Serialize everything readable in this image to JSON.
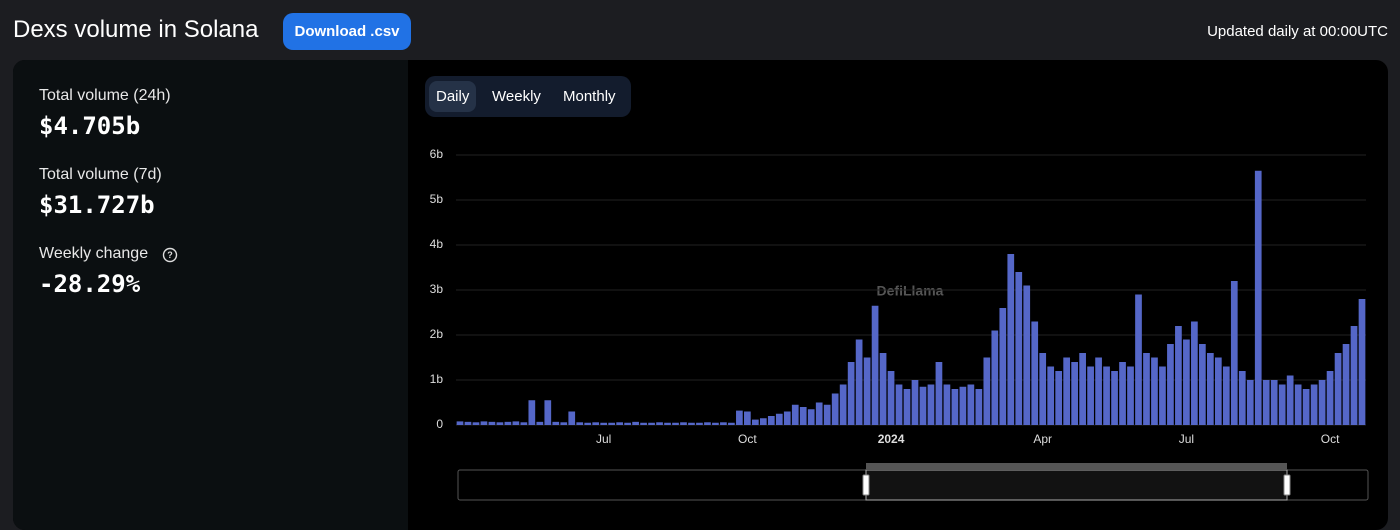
{
  "header": {
    "title": "Dexs volume in Solana",
    "download": "Download .csv",
    "updated": "Updated daily at 00:00UTC"
  },
  "stats": [
    {
      "label": "Total volume (24h)",
      "value": "$4.705b"
    },
    {
      "label": "Total volume (7d)",
      "value": "$31.727b"
    },
    {
      "label": "Weekly change",
      "value": "-28.29%"
    }
  ],
  "tabs": [
    "Daily",
    "Weekly",
    "Monthly"
  ],
  "chart_data": {
    "type": "bar",
    "watermark": "DefiLlama",
    "categories": [
      null,
      null,
      null,
      null,
      null,
      null,
      null,
      null,
      null,
      null,
      null,
      null,
      null,
      null,
      null,
      null,
      null,
      null,
      "Jul",
      null,
      null,
      null,
      null,
      null,
      null,
      null,
      null,
      null,
      null,
      null,
      null,
      null,
      null,
      null,
      null,
      null,
      "Oct",
      null,
      null,
      null,
      null,
      null,
      null,
      null,
      null,
      null,
      null,
      null,
      null,
      null,
      null,
      null,
      null,
      null,
      "2024",
      null,
      null,
      null,
      null,
      null,
      null,
      null,
      null,
      null,
      null,
      null,
      null,
      null,
      null,
      null,
      null,
      null,
      null,
      "Apr",
      null,
      null,
      null,
      null,
      null,
      null,
      null,
      null,
      null,
      null,
      null,
      null,
      null,
      null,
      null,
      null,
      null,
      "Jul",
      null,
      null,
      null,
      null,
      null,
      null,
      null,
      null,
      null,
      null,
      null,
      null,
      null,
      null,
      null,
      null,
      null,
      "Oct",
      null,
      null,
      null,
      null
    ],
    "values": [
      0.08,
      0.07,
      0.06,
      0.08,
      0.07,
      0.06,
      0.07,
      0.08,
      0.06,
      0.55,
      0.07,
      0.55,
      0.07,
      0.06,
      0.3,
      0.06,
      0.05,
      0.06,
      0.05,
      0.05,
      0.06,
      0.05,
      0.07,
      0.05,
      0.05,
      0.06,
      0.05,
      0.05,
      0.06,
      0.05,
      0.05,
      0.06,
      0.05,
      0.06,
      0.05,
      0.32,
      0.3,
      0.12,
      0.15,
      0.2,
      0.25,
      0.3,
      0.45,
      0.4,
      0.35,
      0.5,
      0.45,
      0.7,
      0.9,
      1.4,
      1.9,
      1.5,
      2.65,
      1.6,
      1.2,
      0.9,
      0.8,
      1.0,
      0.85,
      0.9,
      1.4,
      0.9,
      0.8,
      0.85,
      0.9,
      0.8,
      1.5,
      2.1,
      2.6,
      3.8,
      3.4,
      3.1,
      2.3,
      1.6,
      1.3,
      1.2,
      1.5,
      1.4,
      1.6,
      1.3,
      1.5,
      1.3,
      1.2,
      1.4,
      1.3,
      2.9,
      1.6,
      1.5,
      1.3,
      1.8,
      2.2,
      1.9,
      2.3,
      1.8,
      1.6,
      1.5,
      1.3,
      3.2,
      1.2,
      1.0,
      5.65,
      1.0,
      1.0,
      0.9,
      1.1,
      0.9,
      0.8,
      0.9,
      1.0,
      1.2,
      1.6,
      1.8,
      2.2,
      2.8
    ],
    "color": "#5567c8",
    "ylim": [
      0,
      6
    ],
    "yticks": [
      0,
      {
        "value": 1,
        "label": "1b"
      },
      {
        "value": 2,
        "label": "2b"
      },
      {
        "value": 3,
        "label": "3b"
      },
      {
        "value": 4,
        "label": "4b"
      },
      {
        "value": 5,
        "label": "5b"
      },
      {
        "value": 6,
        "label": "6b"
      }
    ],
    "grid": true
  }
}
